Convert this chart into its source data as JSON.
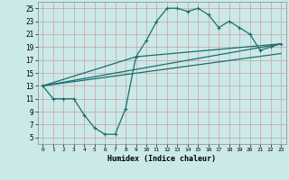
{
  "bg_color": "#cce9e9",
  "line_color": "#1a6e6e",
  "grid_color": "#b0d0d0",
  "xlabel": "Humidex (Indice chaleur)",
  "xlim": [
    -0.5,
    23.5
  ],
  "ylim": [
    4,
    26
  ],
  "yticks": [
    5,
    7,
    9,
    11,
    13,
    15,
    17,
    19,
    21,
    23,
    25
  ],
  "curve1_x": [
    0,
    1,
    2,
    3,
    4,
    5,
    6,
    7,
    8,
    9,
    10,
    11,
    12,
    13,
    14,
    15,
    16,
    17,
    18,
    19,
    20,
    21,
    22,
    23
  ],
  "curve1_y": [
    13,
    11,
    11,
    11,
    8.5,
    6.5,
    5.5,
    5.5,
    9.5,
    17.5,
    20,
    23,
    25,
    25,
    24.5,
    25,
    24,
    22,
    23,
    22,
    21,
    18.5,
    19,
    19.5
  ],
  "line1_x": [
    0,
    23
  ],
  "line1_y": [
    13,
    19.5
  ],
  "line2_x": [
    0,
    9,
    23
  ],
  "line2_y": [
    13,
    17.5,
    19.5
  ],
  "line3_x": [
    0,
    23
  ],
  "line3_y": [
    13,
    18.0
  ],
  "marker": "+"
}
